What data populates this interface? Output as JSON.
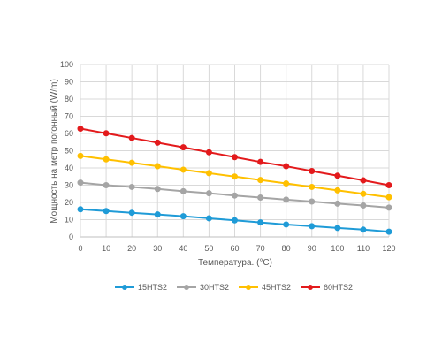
{
  "chart_data": {
    "type": "line",
    "xlabel": "Температура. (°C)",
    "ylabel": "Мощность на метр погонный (W/m)",
    "x": [
      0,
      10,
      20,
      30,
      40,
      50,
      60,
      70,
      80,
      90,
      100,
      110,
      120
    ],
    "xlim": [
      0,
      120
    ],
    "ylim": [
      0,
      100
    ],
    "y_ticks": [
      0,
      10,
      20,
      30,
      40,
      50,
      60,
      70,
      80,
      90,
      100
    ],
    "grid": true,
    "legend_position": "bottom",
    "series": [
      {
        "name": "15HTS2",
        "color": "#1f9bd7",
        "values": [
          16,
          15,
          14,
          13,
          12,
          10.8,
          9.6,
          8.4,
          7.2,
          6.2,
          5.2,
          4.2,
          3
        ]
      },
      {
        "name": "30HTS2",
        "color": "#a5a5a5",
        "values": [
          31.5,
          30,
          29,
          27.8,
          26.5,
          25.3,
          24,
          22.8,
          21.6,
          20.5,
          19.3,
          18.2,
          17
        ]
      },
      {
        "name": "45HTS2",
        "color": "#ffc000",
        "values": [
          47,
          45,
          43,
          41,
          39,
          37,
          35,
          33,
          31,
          29,
          27,
          25,
          23
        ]
      },
      {
        "name": "60HTS2",
        "color": "#e31a1c",
        "values": [
          62.8,
          60.1,
          57.4,
          54.7,
          52,
          49.1,
          46.3,
          43.5,
          41,
          38.2,
          35.5,
          32.8,
          30
        ]
      }
    ]
  }
}
